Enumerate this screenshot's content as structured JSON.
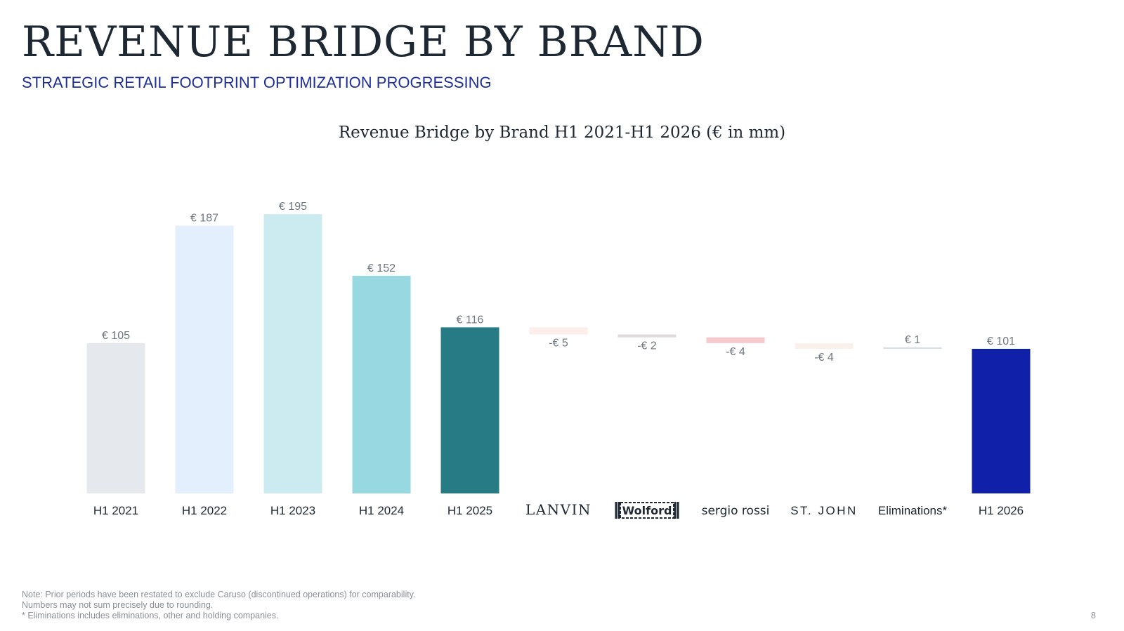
{
  "header": {
    "title": "REVENUE BRIDGE BY BRAND",
    "subtitle": "STRATEGIC RETAIL FOOTPRINT OPTIMIZATION PROGRESSING"
  },
  "chart_data": {
    "type": "bar",
    "variant": "waterfall",
    "title": "Revenue Bridge by Brand H1 2021-H1 2026 (€ in mm)",
    "categories": [
      "H1 2021",
      "H1 2022",
      "H1 2023",
      "H1 2024",
      "H1 2025",
      "LANVIN",
      "Wolford",
      "sergio rossi",
      "ST. JOHN",
      "Eliminations*",
      "H1 2026"
    ],
    "values": [
      105,
      187,
      195,
      152,
      116,
      -5,
      -2,
      -4,
      -4,
      1,
      101
    ],
    "bar_kinds": [
      "total",
      "total",
      "total",
      "total",
      "total",
      "delta",
      "delta",
      "delta",
      "delta",
      "delta",
      "total"
    ],
    "data_labels": [
      "€ 105",
      "€ 187",
      "€ 195",
      "€ 152",
      "€ 116",
      "-€ 5",
      "-€ 2",
      "-€ 4",
      "-€ 4",
      "€ 1",
      "€ 101"
    ],
    "colors": [
      "#e5e9ed",
      "#e3effc",
      "#cbebf0",
      "#98d9e1",
      "#267b84",
      "#fbeeeb",
      "#dddbdb",
      "#f6c9cc",
      "#faf0ec",
      "#d5dce6",
      "#1120a9"
    ],
    "xlabel": "",
    "ylabel": "",
    "ylim": [
      0,
      210
    ],
    "grid": false,
    "legend": "none"
  },
  "footnotes": [
    "Note: Prior periods have been restated to exclude Caruso (discontinued operations) for comparability.",
    "Numbers may not sum precisely due to rounding.",
    "* Eliminations includes eliminations, other and holding companies."
  ],
  "page_number": "8"
}
